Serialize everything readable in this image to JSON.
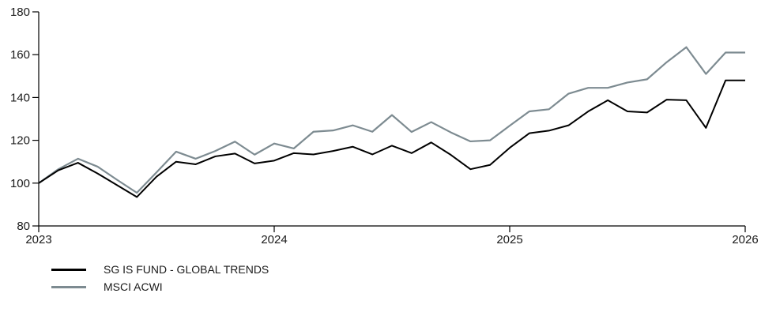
{
  "chart_data": {
    "type": "line",
    "x_ticks": [
      "2023",
      "2024",
      "2025",
      "2026"
    ],
    "ylim": [
      80,
      180
    ],
    "y_ticks": [
      80,
      100,
      120,
      140,
      160,
      180
    ],
    "grid": false,
    "legend_position": "bottom-left",
    "x": [
      "2023-01",
      "2023-02",
      "2023-03",
      "2023-04",
      "2023-05",
      "2023-06",
      "2023-07",
      "2023-08",
      "2023-09",
      "2023-10",
      "2023-11",
      "2023-12",
      "2024-01",
      "2024-02",
      "2024-03",
      "2024-04",
      "2024-05",
      "2024-06",
      "2024-07",
      "2024-08",
      "2024-09",
      "2024-10",
      "2024-11",
      "2024-12",
      "2025-01",
      "2025-02",
      "2025-03",
      "2025-04",
      "2025-05",
      "2025-06",
      "2025-07",
      "2025-08",
      "2025-09",
      "2025-10",
      "2025-11",
      "2025-12",
      "2026-01"
    ],
    "series": [
      {
        "name": "SG IS FUND - GLOBAL TRENDS",
        "color": "#000000",
        "values": [
          100.0,
          106.0,
          109.5,
          104.5,
          99.0,
          93.5,
          103.0,
          110.0,
          108.8,
          112.5,
          113.8,
          109.2,
          110.5,
          114.0,
          113.4,
          115.0,
          117.0,
          113.4,
          117.5,
          114.0,
          119.0,
          113.2,
          106.5,
          108.5,
          116.5,
          123.3,
          124.5,
          127.0,
          133.5,
          138.7,
          133.5,
          133.0,
          139.0,
          138.7,
          125.8,
          148.0,
          148.0
        ]
      },
      {
        "name": "MSCI ACWI",
        "color": "#7d8b91",
        "values": [
          100.0,
          106.5,
          111.4,
          107.7,
          101.5,
          95.5,
          105.0,
          114.7,
          111.4,
          115.0,
          119.4,
          113.3,
          118.5,
          116.2,
          124.0,
          124.6,
          127.0,
          124.0,
          131.8,
          123.9,
          128.5,
          123.7,
          119.5,
          120.0,
          126.8,
          133.5,
          134.5,
          141.8,
          144.5,
          144.5,
          147.0,
          148.5,
          156.5,
          163.5,
          151.0,
          161.0,
          161.0
        ]
      }
    ]
  }
}
